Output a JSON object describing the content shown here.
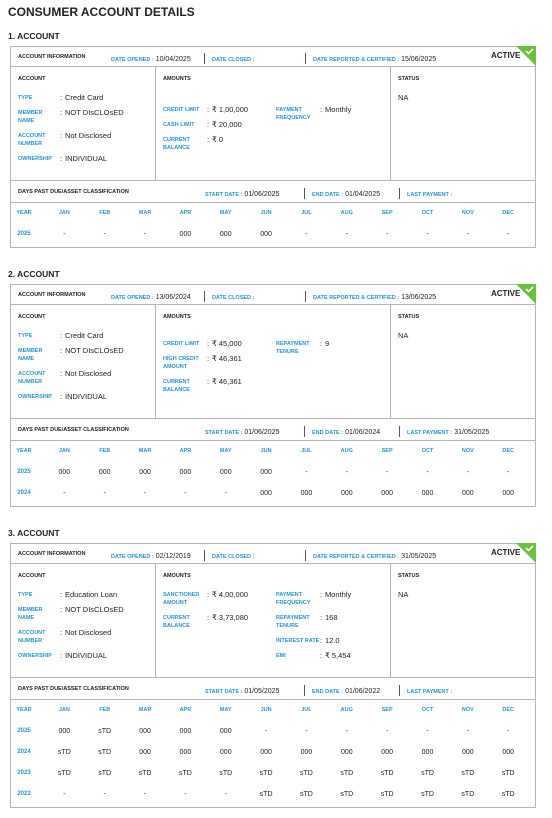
{
  "title": "CONSUMER ACCOUNT DETAILS",
  "separator": ":",
  "accounts": [
    {
      "heading": "1. ACCOUNT",
      "info": {
        "label": "ACCOUNT INFORMATION",
        "date_opened_label": "DATE OPENED :",
        "date_opened": "10/04/2025",
        "date_closed_label": "DATE CLOSED :",
        "date_reported_label": "DATE REPORTED & CERTIFIED :",
        "date_reported": "15/06/2025",
        "status_badge": "ACTIVE"
      },
      "account": {
        "label": "ACCOUNT",
        "fields": [
          {
            "label": "TYPE",
            "value": "Credit Card"
          },
          {
            "label": "MEMBER NAME",
            "value": "NOT DIsCLOsED"
          },
          {
            "label": "ACCOUNT NUMBER",
            "value": "Not Disclosed"
          },
          {
            "label": "OWNERSHIP",
            "value": "INDIVIDUAL"
          }
        ]
      },
      "amounts": {
        "label": "AMOUNTS",
        "left": [
          {
            "label": "CREDIT LIMIT",
            "value": "₹ 1,00,000"
          },
          {
            "label": "CASH LIMIT",
            "value": "₹ 20,000"
          },
          {
            "label": "CURRENT BALANCE",
            "value": "₹ 0"
          }
        ],
        "right": [
          {
            "label": "PAYMENT FREQUENCY",
            "value": "Monthly"
          }
        ]
      },
      "status": {
        "label": "STATUS",
        "value": "NA"
      },
      "dpd": {
        "label": "DAYS PAST DUE/ASSET CLASSIFICATION",
        "start_label": "START DATE :",
        "start": "01/06/2025",
        "end_label": "END DATE :",
        "end": "01/04/2025",
        "last_payment_label": "LAST PAYMENT :"
      },
      "table": {
        "columns": [
          "YEAR",
          "JAN",
          "FEB",
          "MAR",
          "APR",
          "MAY",
          "JUN",
          "JUL",
          "AUG",
          "SEP",
          "OCT",
          "NOV",
          "DEC"
        ],
        "rows": [
          [
            "2025",
            "-",
            "-",
            "-",
            "000",
            "000",
            "000",
            "-",
            "-",
            "-",
            "-",
            "-",
            "-"
          ]
        ]
      }
    },
    {
      "heading": "2. ACCOUNT",
      "info": {
        "label": "ACCOUNT INFORMATION",
        "date_opened_label": "DATE OPENED :",
        "date_opened": "13/06/2024",
        "date_closed_label": "DATE CLOSED :",
        "date_reported_label": "DATE REPORTED & CERTIFIED :",
        "date_reported": "13/06/2025",
        "status_badge": "ACTIVE"
      },
      "account": {
        "label": "ACCOUNT",
        "fields": [
          {
            "label": "TYPE",
            "value": "Credit Card"
          },
          {
            "label": "MEMBER NAME",
            "value": "NOT DIsCLOsED"
          },
          {
            "label": "ACCOUNT NUMBER",
            "value": "Not Disclosed"
          },
          {
            "label": "OWNERSHIP",
            "value": "INDIVIDUAL"
          }
        ]
      },
      "amounts": {
        "label": "AMOUNTS",
        "left": [
          {
            "label": "CREDIT LIMIT",
            "value": "₹ 45,000"
          },
          {
            "label": "HIGH CREDIT AMOUNT",
            "value": "₹ 46,361"
          },
          {
            "label": "CURRENT BALANCE",
            "value": "₹ 46,361"
          }
        ],
        "right": [
          {
            "label": "REPAYMENT TENURE",
            "value": "9"
          }
        ]
      },
      "status": {
        "label": "STATUS",
        "value": "NA"
      },
      "dpd": {
        "label": "DAYS PAST DUE/ASSET CLASSIFICATION",
        "start_label": "START DATE :",
        "start": "01/06/2025",
        "end_label": "END DATE :",
        "end": "01/06/2024",
        "last_payment_label": "LAST PAYMENT :",
        "last_payment": "31/05/2025"
      },
      "table": {
        "columns": [
          "YEAR",
          "JAN",
          "FEB",
          "MAR",
          "APR",
          "MAY",
          "JUN",
          "JUL",
          "AUG",
          "SEP",
          "OCT",
          "NOV",
          "DEC"
        ],
        "rows": [
          [
            "2025",
            "000",
            "000",
            "000",
            "000",
            "000",
            "000",
            "-",
            "-",
            "-",
            "-",
            "-",
            "-"
          ],
          [
            "2024",
            "-",
            "-",
            "-",
            "-",
            "-",
            "000",
            "000",
            "000",
            "000",
            "000",
            "000",
            "000"
          ]
        ]
      }
    },
    {
      "heading": "3. ACCOUNT",
      "info": {
        "label": "ACCOUNT INFORMATION",
        "date_opened_label": "DATE OPENED :",
        "date_opened": "02/12/2019",
        "date_closed_label": "DATE CLOSED :",
        "date_reported_label": "DATE REPORTED & CERTIFIED :",
        "date_reported": "31/05/2025",
        "status_badge": "ACTIVE"
      },
      "account": {
        "label": "ACCOUNT",
        "fields": [
          {
            "label": "TYPE",
            "value": "Education Loan"
          },
          {
            "label": "MEMBER NAME",
            "value": "NOT DIsCLOsED"
          },
          {
            "label": "ACCOUNT NUMBER",
            "value": "Not Disclosed"
          },
          {
            "label": "OWNERSHIP",
            "value": "INDIVIDUAL"
          }
        ]
      },
      "amounts": {
        "label": "AMOUNTS",
        "left": [
          {
            "label": "SANCTIONED AMOUNT",
            "value": "₹ 4,00,000"
          },
          {
            "label": "CURRENT BALANCE",
            "value": "₹ 3,73,080"
          }
        ],
        "right": [
          {
            "label": "PAYMENT FREQUENCY",
            "value": "Monthly"
          },
          {
            "label": "REPAYMENT TENURE",
            "value": "168"
          },
          {
            "label": "INTEREST RATE",
            "value": "12.0"
          },
          {
            "label": "EMI",
            "value": "₹ 5,454"
          }
        ]
      },
      "status": {
        "label": "STATUS",
        "value": "NA"
      },
      "dpd": {
        "label": "DAYS PAST DUE/ASSET CLASSIFICATION",
        "start_label": "START DATE :",
        "start": "01/05/2025",
        "end_label": "END DATE :",
        "end": "01/06/2022",
        "last_payment_label": "LAST PAYMENT :"
      },
      "table": {
        "columns": [
          "YEAR",
          "JAN",
          "FEB",
          "MAR",
          "APR",
          "MAY",
          "JUN",
          "JUL",
          "AUG",
          "SEP",
          "OCT",
          "NOV",
          "DEC"
        ],
        "rows": [
          [
            "2025",
            "000",
            "sTD",
            "000",
            "000",
            "000",
            "-",
            "-",
            "-",
            "-",
            "-",
            "-",
            "-"
          ],
          [
            "2024",
            "sTD",
            "sTD",
            "000",
            "000",
            "000",
            "000",
            "000",
            "000",
            "000",
            "000",
            "000",
            "000"
          ],
          [
            "2023",
            "sTD",
            "sTD",
            "sTD",
            "sTD",
            "sTD",
            "sTD",
            "sTD",
            "sTD",
            "sTD",
            "sTD",
            "sTD",
            "sTD"
          ],
          [
            "2022",
            "-",
            "-",
            "-",
            "-",
            "-",
            "sTD",
            "sTD",
            "sTD",
            "sTD",
            "sTD",
            "sTD",
            "sTD"
          ]
        ]
      }
    }
  ]
}
